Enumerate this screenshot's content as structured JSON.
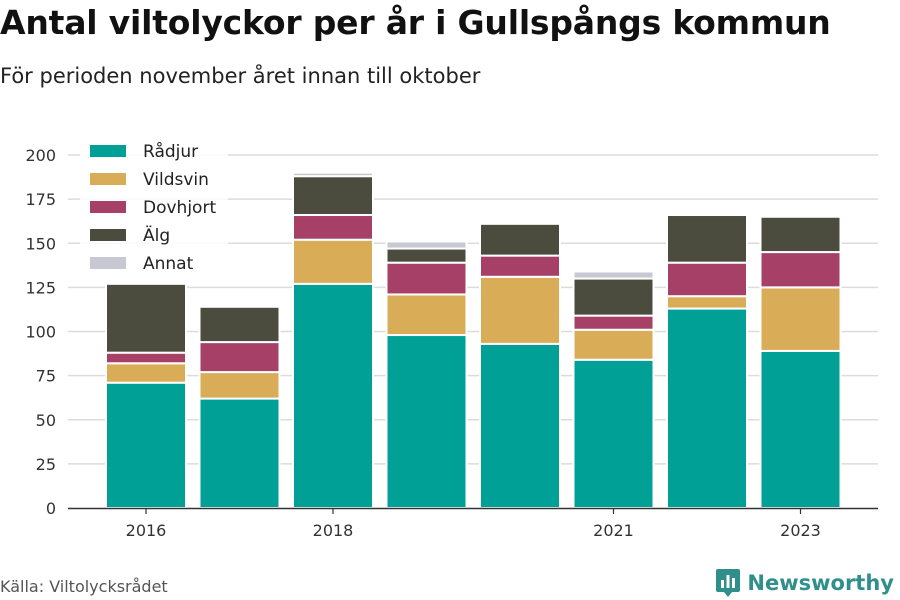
{
  "title": "Antal viltolyckor per år i Gullspångs kommun",
  "subtitle": "För perioden november året innan till oktober",
  "source": "Källa: Viltolycksrådet",
  "brand": "Newsworthy",
  "chart_data": {
    "type": "bar",
    "stacked": true,
    "categories": [
      "2016",
      "2017",
      "2018",
      "2019",
      "2020",
      "2021",
      "2022",
      "2023"
    ],
    "x_tick_labels": [
      "2016",
      "",
      "2018",
      "",
      "",
      "2021",
      "",
      "2023"
    ],
    "ylim": [
      0,
      200
    ],
    "y_ticks": [
      0,
      25,
      50,
      75,
      100,
      125,
      150,
      175,
      200
    ],
    "grid": true,
    "legend_position": "top-left",
    "series": [
      {
        "name": "Rådjur",
        "color": "#00a096",
        "values": [
          71,
          62,
          127,
          98,
          93,
          84,
          113,
          89
        ]
      },
      {
        "name": "Vildsvin",
        "color": "#d9ad58",
        "values": [
          11,
          15,
          25,
          23,
          38,
          17,
          7,
          36
        ]
      },
      {
        "name": "Dovhjort",
        "color": "#a64066",
        "values": [
          6,
          17,
          14,
          18,
          12,
          8,
          19,
          20
        ]
      },
      {
        "name": "Älg",
        "color": "#4b4c3e",
        "values": [
          39,
          20,
          22,
          8,
          18,
          21,
          27,
          20
        ]
      },
      {
        "name": "Annat",
        "color": "#c8c8d2",
        "values": [
          0,
          0,
          2,
          4,
          0,
          4,
          0,
          0
        ]
      }
    ]
  }
}
